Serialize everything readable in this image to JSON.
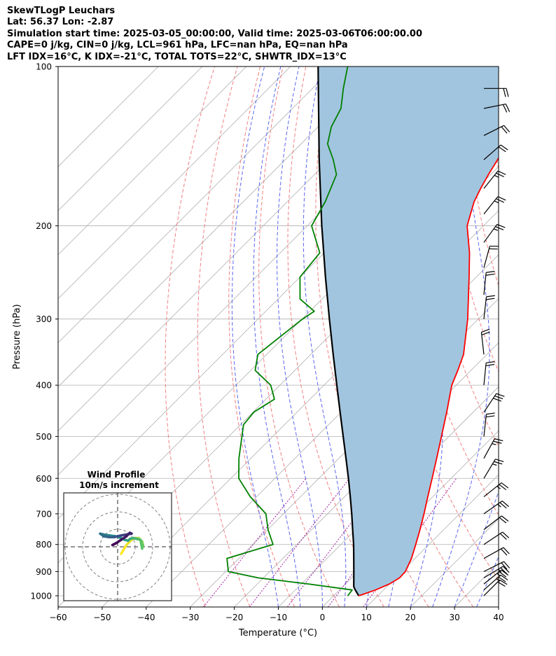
{
  "header": {
    "title": "SkewTLogP Leuchars",
    "location": "Lat: 56.37   Lon: -2.87",
    "times": "Simulation start time: 2025-03-05_00:00:00, Valid time: 2025-03-06T06:00:00.00",
    "params": "CAPE=0 j/kg, CIN=0 j/kg, LCL=961 hPa, LFC=nan hPa, EQ=nan hPa",
    "indices": "LFT IDX=16$^\\circ$C, K IDX=-21$^\\circ$C, TOTAL TOTS=22$^\\circ$C, SHWTR_IDX=13$^\\circ$C"
  },
  "chart_data": {
    "type": "line",
    "title": "SkewTLogP Leuchars",
    "xlabel": "Temperature ($^\\circ$C)",
    "ylabel": "Pressure (hPa)",
    "xlim": [
      -60,
      40
    ],
    "ylim": [
      1050,
      100
    ],
    "y_scale": "log",
    "grid": true,
    "xticks": [
      -60,
      -50,
      -40,
      -30,
      -20,
      -10,
      0,
      10,
      20,
      30,
      40
    ],
    "yticks": [
      1000,
      900,
      800,
      700,
      600,
      500,
      400,
      300,
      200,
      100
    ],
    "colors": {
      "temperature": "#ff0000",
      "dewpoint": "#008000",
      "parcel": "#000000",
      "shade": "#a2c5df",
      "dry_adiabat": "#f08080",
      "moist_adiabat": "#5a66ee",
      "mixing_ratio": "#a020a0",
      "isotherm": "#b0b0b0"
    },
    "series": [
      {
        "key": "temperature",
        "p": [
          1000,
          975,
          950,
          925,
          900,
          850,
          800,
          750,
          700,
          650,
          600,
          550,
          500,
          450,
          400,
          375,
          350,
          300,
          250,
          225,
          200,
          190,
          180,
          170,
          160,
          150,
          140,
          130,
          120,
          110,
          100
        ],
        "t": [
          5.7,
          8.2,
          10.0,
          10.9,
          10.8,
          9.2,
          7.0,
          4.6,
          1.9,
          -1.1,
          -4.3,
          -7.8,
          -11.7,
          -16.0,
          -21.0,
          -23.0,
          -25.3,
          -32.4,
          -41.6,
          -47.0,
          -53.7,
          -55.6,
          -57.6,
          -59.1,
          -60.5,
          -61.8,
          -63.1,
          -62.4,
          -61.2,
          -59.0,
          -56.0
        ]
      },
      {
        "key": "dewpoint",
        "p": [
          1000,
          975,
          950,
          925,
          900,
          850,
          800,
          750,
          700,
          650,
          600,
          550,
          500,
          475,
          450,
          425,
          400,
          375,
          350,
          300,
          290,
          275,
          250,
          225,
          200,
          180,
          160,
          150,
          140,
          130,
          120,
          110,
          100
        ],
        "t": [
          3.2,
          2.9,
          -8.4,
          -21.2,
          -29.4,
          -32.7,
          -25.4,
          -29.9,
          -34.0,
          -41.4,
          -48.2,
          -52.7,
          -57.0,
          -59.3,
          -59.8,
          -58.1,
          -62.1,
          -69.0,
          -72.0,
          -69.9,
          -69.0,
          -75.0,
          -80.0,
          -81.0,
          -89.0,
          -91.4,
          -95.0,
          -99.1,
          -104.0,
          -107.0,
          -109.0,
          -113.0,
          -117.0
        ]
      },
      {
        "key": "parcel",
        "p": [
          1000,
          975,
          961,
          950,
          900,
          850,
          800,
          750,
          700,
          650,
          600,
          550,
          500,
          450,
          400,
          350,
          300,
          250,
          200,
          150,
          100
        ],
        "t": [
          5.7,
          3.6,
          2.5,
          1.9,
          -0.9,
          -3.9,
          -7.1,
          -10.7,
          -14.5,
          -18.7,
          -23.3,
          -28.4,
          -34.0,
          -40.2,
          -47.1,
          -54.9,
          -63.8,
          -74.2,
          -86.7,
          -102.3,
          -123.7
        ]
      }
    ],
    "wind_barbs": [
      {
        "p": 1000,
        "u": -8,
        "v": -8
      },
      {
        "p": 975,
        "u": -9,
        "v": -8
      },
      {
        "p": 950,
        "u": -10,
        "v": -8
      },
      {
        "p": 925,
        "u": -10,
        "v": -6
      },
      {
        "p": 900,
        "u": -10,
        "v": -5
      },
      {
        "p": 850,
        "u": -9,
        "v": -5
      },
      {
        "p": 800,
        "u": -9,
        "v": -6
      },
      {
        "p": 750,
        "u": -9,
        "v": -7
      },
      {
        "p": 700,
        "u": -10,
        "v": -7
      },
      {
        "p": 650,
        "u": -10,
        "v": -8
      },
      {
        "p": 600,
        "u": -6,
        "v": -10
      },
      {
        "p": 550,
        "u": -6,
        "v": -11
      },
      {
        "p": 500,
        "u": -1,
        "v": -9
      },
      {
        "p": 450,
        "u": -8,
        "v": -12
      },
      {
        "p": 400,
        "u": -1,
        "v": -10
      },
      {
        "p": 350,
        "u": 1,
        "v": -9
      },
      {
        "p": 300,
        "u": -1,
        "v": -9
      },
      {
        "p": 270,
        "u": -1,
        "v": -10
      },
      {
        "p": 240,
        "u": -3,
        "v": -11
      },
      {
        "p": 215,
        "u": -8,
        "v": -11
      },
      {
        "p": 190,
        "u": -8,
        "v": -10
      },
      {
        "p": 170,
        "u": -8,
        "v": -10
      },
      {
        "p": 150,
        "u": -8,
        "v": -7
      },
      {
        "p": 135,
        "u": -10,
        "v": -5
      },
      {
        "p": 120,
        "u": -10,
        "v": -2
      },
      {
        "p": 110,
        "u": -10,
        "v": 0
      }
    ],
    "hodograph": {
      "title": "Wind Profile",
      "subtitle": "10m/s increment",
      "ring_step": 10,
      "rings": [
        10,
        20,
        30
      ],
      "u": [
        2.0,
        5.0,
        8.0,
        10.0,
        12.0,
        13.0,
        14.0,
        14.5,
        14.0,
        13.0,
        11.0,
        9.0,
        7.0,
        6.0,
        4.0,
        2.0,
        -1.0,
        -5.0,
        -8.0,
        -10.0,
        -8.0,
        -5.0,
        -2.0,
        0.0,
        2.0,
        5.0,
        8.0,
        7.0,
        5.0,
        2.0,
        -1.0,
        -3.0
      ],
      "v": [
        -4.0,
        1.0,
        4.0,
        5.0,
        5.0,
        4.0,
        3.0,
        1.0,
        -1.0,
        4.0,
        4.5,
        5.0,
        4.5,
        3.5,
        4.0,
        5.0,
        6.0,
        6.5,
        7.0,
        7.5,
        6.0,
        5.5,
        5.5,
        6.0,
        6.5,
        7.0,
        7.5,
        8.0,
        6.0,
        4.0,
        2.0,
        1.0
      ]
    }
  }
}
